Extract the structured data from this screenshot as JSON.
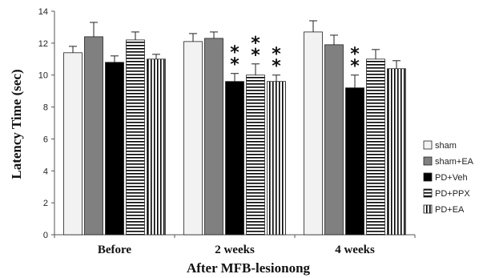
{
  "chart_data": {
    "type": "bar",
    "categories": [
      "Before",
      "2 weeks",
      "4 weeks"
    ],
    "series": [
      {
        "name": "sham",
        "values": [
          11.4,
          12.1,
          12.7
        ],
        "errors": [
          0.4,
          0.5,
          0.7
        ],
        "fill": "#f2f2f2",
        "pattern": "solid"
      },
      {
        "name": "sham+EA",
        "values": [
          12.4,
          12.3,
          11.9
        ],
        "errors": [
          0.9,
          0.4,
          0.6
        ],
        "fill": "#808080",
        "pattern": "solid"
      },
      {
        "name": "PD+Veh",
        "values": [
          10.8,
          9.6,
          9.2
        ],
        "errors": [
          0.4,
          0.5,
          0.8
        ],
        "fill": "#000000",
        "pattern": "solid"
      },
      {
        "name": "PD+PPX",
        "values": [
          12.2,
          10.0,
          11.0
        ],
        "errors": [
          0.5,
          0.7,
          0.6
        ],
        "fill": "#ffffff",
        "pattern": "horizontal-stripes"
      },
      {
        "name": "PD+EA",
        "values": [
          11.0,
          9.6,
          10.4
        ],
        "errors": [
          0.3,
          0.4,
          0.5
        ],
        "fill": "#ffffff",
        "pattern": "vertical-stripes"
      }
    ],
    "significance": [
      {
        "category": "2 weeks",
        "series": "PD+Veh",
        "label": "**"
      },
      {
        "category": "2 weeks",
        "series": "PD+PPX",
        "label": "**"
      },
      {
        "category": "2 weeks",
        "series": "PD+EA",
        "label": "**"
      },
      {
        "category": "4 weeks",
        "series": "PD+Veh",
        "label": "**"
      }
    ],
    "ylabel": "Latency Time (sec)",
    "xlabel": "After MFB-lesionong",
    "ylim": [
      0,
      14
    ],
    "yticks": [
      0,
      2,
      4,
      6,
      8,
      10,
      12,
      14
    ],
    "grid": false,
    "legend_position": "right"
  }
}
